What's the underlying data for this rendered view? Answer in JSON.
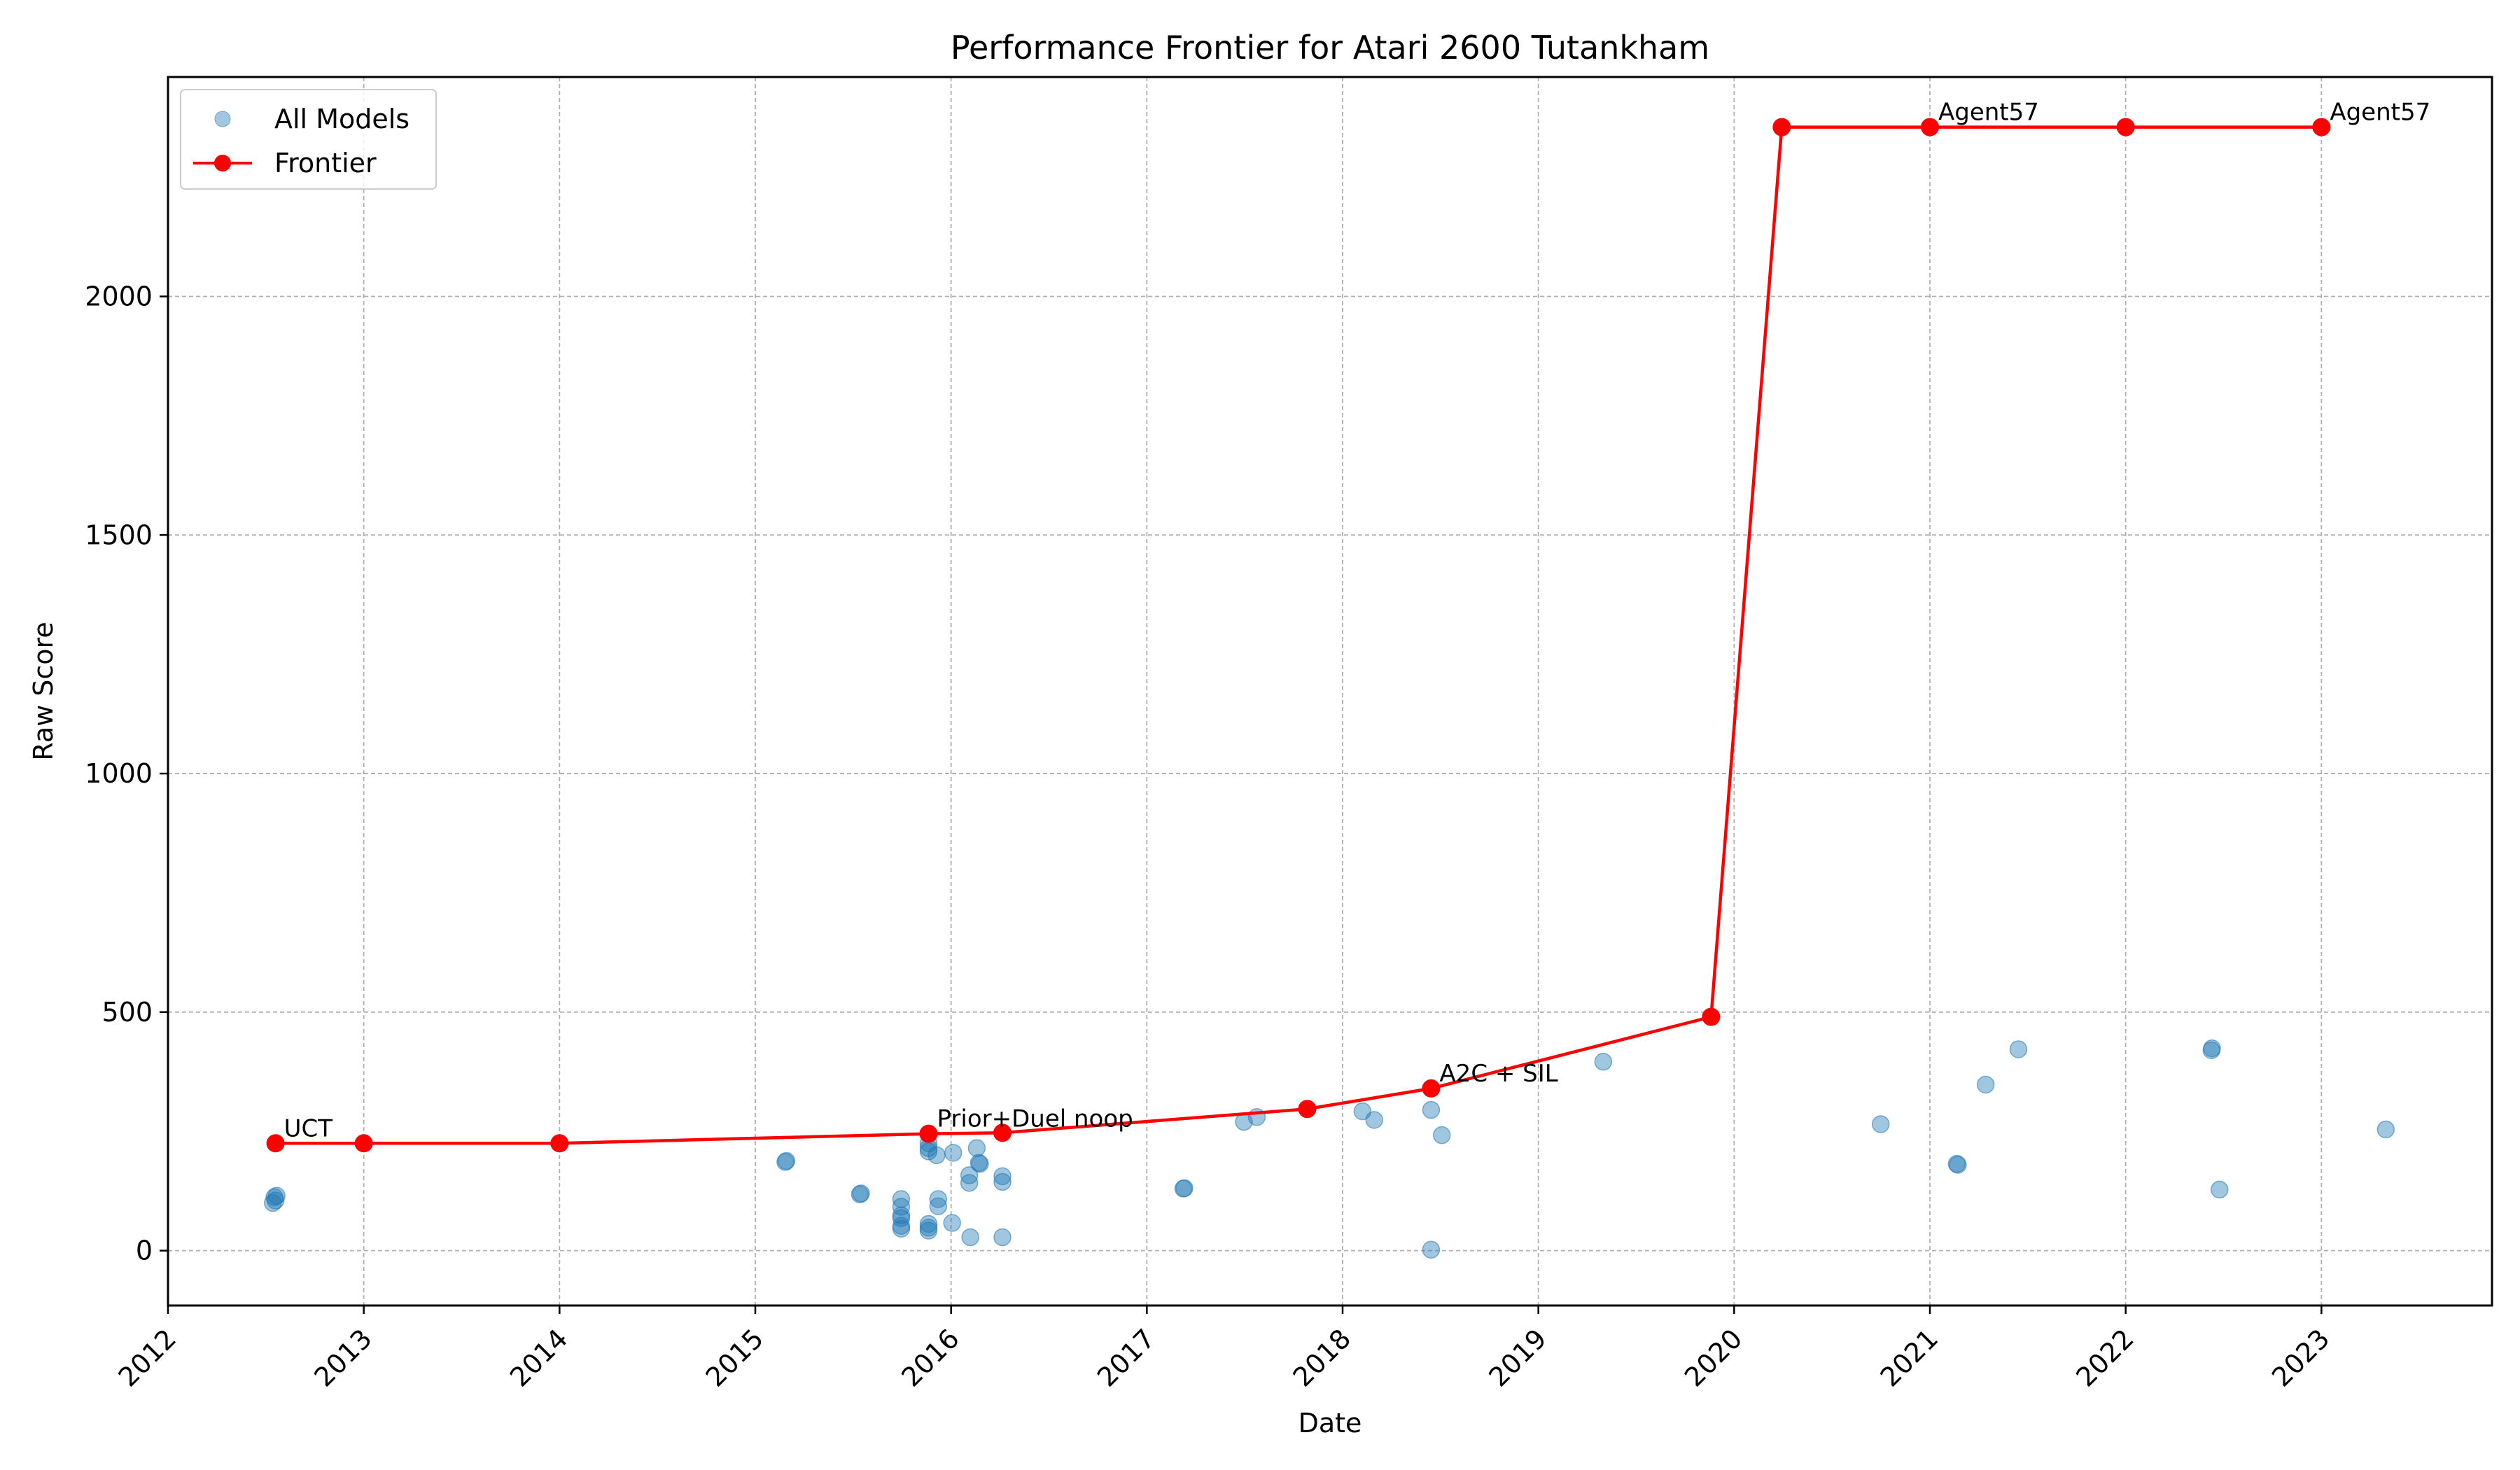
{
  "chart_data": {
    "type": "scatter",
    "title": "Performance Frontier for Atari 2600 Tutankham",
    "xlabel": "Date",
    "ylabel": "Raw Score",
    "xlim": [
      "2012-01-01",
      "2023-11-15"
    ],
    "ylim": [
      -115,
      2460
    ],
    "x_ticks": [
      "2012",
      "2013",
      "2014",
      "2015",
      "2016",
      "2017",
      "2018",
      "2019",
      "2020",
      "2021",
      "2022",
      "2023"
    ],
    "y_ticks": [
      0,
      500,
      1000,
      1500,
      2000
    ],
    "grid": true,
    "legend": {
      "location": "top-left",
      "entries": [
        "All Models",
        "Frontier"
      ]
    },
    "colors": {
      "all_models": "#1f77b4",
      "frontier": "#ff0000"
    },
    "series": [
      {
        "name": "All Models",
        "kind": "scatter",
        "points": [
          [
            "2012-07-15",
            100
          ],
          [
            "2012-07-20",
            105
          ],
          [
            "2012-07-18",
            112
          ],
          [
            "2012-07-22",
            115
          ],
          [
            "2015-02-26",
            186
          ],
          [
            "2015-02-28",
            188
          ],
          [
            "2015-07-15",
            118
          ],
          [
            "2015-07-17",
            120
          ],
          [
            "2015-09-30",
            108
          ],
          [
            "2015-09-30",
            92
          ],
          [
            "2015-09-30",
            74
          ],
          [
            "2015-09-30",
            68
          ],
          [
            "2015-09-30",
            52
          ],
          [
            "2015-09-30",
            46
          ],
          [
            "2015-11-20",
            245
          ],
          [
            "2015-11-20",
            225
          ],
          [
            "2015-11-20",
            215
          ],
          [
            "2015-11-20",
            208
          ],
          [
            "2015-11-20",
            56
          ],
          [
            "2015-11-20",
            48
          ],
          [
            "2015-11-20",
            42
          ],
          [
            "2015-12-05",
            200
          ],
          [
            "2015-12-08",
            108
          ],
          [
            "2015-12-08",
            93
          ],
          [
            "2016-01-05",
            205
          ],
          [
            "2016-01-03",
            58
          ],
          [
            "2016-02-04",
            158
          ],
          [
            "2016-02-04",
            142
          ],
          [
            "2016-02-06",
            28
          ],
          [
            "2016-02-18",
            215
          ],
          [
            "2016-02-22",
            184
          ],
          [
            "2016-02-24",
            182
          ],
          [
            "2016-04-06",
            156
          ],
          [
            "2016-04-06",
            144
          ],
          [
            "2016-04-06",
            28
          ],
          [
            "2017-03-10",
            130
          ],
          [
            "2017-03-12",
            131
          ],
          [
            "2017-07-01",
            270
          ],
          [
            "2017-07-25",
            280
          ],
          [
            "2018-02-07",
            292
          ],
          [
            "2018-03-01",
            274
          ],
          [
            "2018-06-15",
            295
          ],
          [
            "2018-06-15",
            2
          ],
          [
            "2018-07-05",
            242
          ],
          [
            "2019-05-02",
            396
          ],
          [
            "2020-10-01",
            265
          ],
          [
            "2021-02-20",
            182
          ],
          [
            "2021-02-22",
            180
          ],
          [
            "2021-04-15",
            348
          ],
          [
            "2021-06-15",
            422
          ],
          [
            "2022-06-10",
            420
          ],
          [
            "2022-06-11",
            424
          ],
          [
            "2022-06-25",
            128
          ],
          [
            "2023-05-01",
            254
          ]
        ]
      },
      {
        "name": "Frontier",
        "kind": "line",
        "points": [
          [
            "2012-07-20",
            225
          ],
          [
            "2013-01-01",
            225
          ],
          [
            "2014-01-01",
            225
          ],
          [
            "2015-11-20",
            245
          ],
          [
            "2016-04-06",
            247
          ],
          [
            "2017-10-27",
            297
          ],
          [
            "2018-06-15",
            340
          ],
          [
            "2019-11-19",
            490
          ],
          [
            "2020-03-30",
            2355
          ],
          [
            "2021-01-01",
            2355
          ],
          [
            "2022-01-01",
            2355
          ],
          [
            "2023-01-01",
            2355
          ]
        ]
      }
    ],
    "annotations": [
      {
        "text": "UCT",
        "x": "2012-07-20",
        "y": 225
      },
      {
        "text": "Prior+Duel noop",
        "x": "2015-11-20",
        "y": 245
      },
      {
        "text": "A2C + SIL",
        "x": "2018-06-15",
        "y": 340
      },
      {
        "text": "Agent57",
        "x": "2021-01-01",
        "y": 2355
      },
      {
        "text": "Agent57",
        "x": "2023-01-01",
        "y": 2355
      }
    ]
  }
}
